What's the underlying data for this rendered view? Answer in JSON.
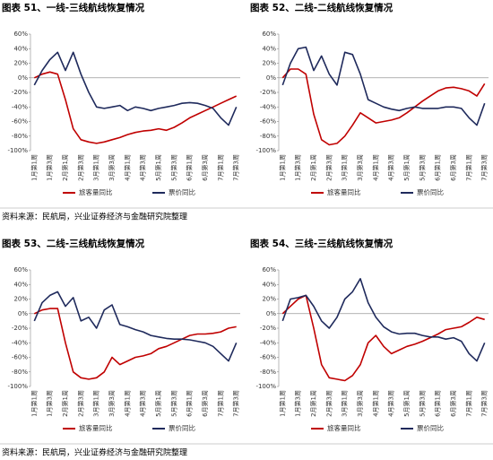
{
  "chart_data": [
    {
      "type": "line",
      "title": "图表 51、一线-三线航线恢复情况",
      "categories": [
        "1月第1周",
        null,
        "1月第3周",
        null,
        "2月第1周",
        null,
        "2月第3周",
        null,
        "3月第1周",
        null,
        "3月第3周",
        null,
        "4月第1周",
        null,
        "4月第3周",
        null,
        "5月第1周",
        null,
        "5月第3周",
        null,
        "6月第1周",
        null,
        "6月第3周",
        null,
        "7月第1周",
        null,
        "7月第3周"
      ],
      "series": [
        {
          "name": "旅客量同比",
          "color": "#c00000",
          "values": [
            0,
            5,
            8,
            5,
            -30,
            -70,
            -85,
            -88,
            -90,
            -88,
            -85,
            -82,
            -78,
            -75,
            -73,
            -72,
            -70,
            -72,
            -68,
            -62,
            -55,
            -50,
            -45,
            -40,
            -35,
            -30,
            -25
          ]
        },
        {
          "name": "票价同比",
          "color": "#1f2a5c",
          "values": [
            -10,
            10,
            25,
            35,
            10,
            35,
            5,
            -20,
            -40,
            -42,
            -40,
            -38,
            -45,
            -40,
            -42,
            -45,
            -42,
            -40,
            -38,
            -35,
            -34,
            -35,
            -38,
            -42,
            -55,
            -65,
            -40
          ]
        }
      ],
      "ylim": [
        -100,
        60
      ],
      "yticks": [
        {
          "value": -100,
          "label": "-100%"
        },
        {
          "value": -80,
          "label": "-80%"
        },
        {
          "value": -60,
          "label": "-60%"
        },
        {
          "value": -40,
          "label": "-40%"
        },
        {
          "value": -20,
          "label": "-20%"
        },
        {
          "value": 0,
          "label": "0%"
        },
        {
          "value": 20,
          "label": "20%"
        },
        {
          "value": 40,
          "label": "40%"
        },
        {
          "value": 60,
          "label": "60%"
        }
      ],
      "grid": false,
      "legend": "bottom"
    },
    {
      "type": "line",
      "title": "图表 52、二线-二线航线恢复情况",
      "categories": [
        "1月第1周",
        null,
        "1月第3周",
        null,
        "2月第1周",
        null,
        "2月第3周",
        null,
        "3月第1周",
        null,
        "3月第3周",
        null,
        "4月第1周",
        null,
        "4月第3周",
        null,
        "5月第1周",
        null,
        "5月第3周",
        null,
        "6月第1周",
        null,
        "6月第3周",
        null,
        "7月第1周",
        null,
        "7月第3周"
      ],
      "series": [
        {
          "name": "旅客量同比",
          "color": "#c00000",
          "values": [
            0,
            12,
            12,
            5,
            -50,
            -85,
            -92,
            -90,
            -80,
            -65,
            -48,
            -55,
            -62,
            -60,
            -58,
            -55,
            -48,
            -40,
            -32,
            -25,
            -18,
            -14,
            -13,
            -15,
            -18,
            -25,
            -8
          ]
        },
        {
          "name": "票价同比",
          "color": "#1f2a5c",
          "values": [
            -10,
            20,
            40,
            42,
            10,
            30,
            5,
            -10,
            35,
            32,
            5,
            -30,
            -35,
            -40,
            -43,
            -45,
            -42,
            -40,
            -42,
            -42,
            -42,
            -40,
            -40,
            -42,
            -55,
            -65,
            -35
          ]
        }
      ],
      "ylim": [
        -100,
        60
      ],
      "yticks": [
        {
          "value": -100,
          "label": "-100%"
        },
        {
          "value": -80,
          "label": "-80%"
        },
        {
          "value": -60,
          "label": "-60%"
        },
        {
          "value": -40,
          "label": "-40%"
        },
        {
          "value": -20,
          "label": "-20%"
        },
        {
          "value": 0,
          "label": "0%"
        },
        {
          "value": 20,
          "label": "20%"
        },
        {
          "value": 40,
          "label": "40%"
        },
        {
          "value": 60,
          "label": "60%"
        }
      ],
      "grid": false,
      "legend": "bottom"
    },
    {
      "type": "line",
      "title": "图表 53、二线-三线航线恢复情况",
      "categories": [
        "1月第1周",
        null,
        "1月第3周",
        null,
        "2月第1周",
        null,
        "2月第3周",
        null,
        "3月第1周",
        null,
        "3月第3周",
        null,
        "4月第1周",
        null,
        "4月第3周",
        null,
        "5月第1周",
        null,
        "5月第3周",
        null,
        "6月第1周",
        null,
        "6月第3周",
        null,
        "7月第1周",
        null,
        "7月第3周"
      ],
      "series": [
        {
          "name": "旅客量同比",
          "color": "#c00000",
          "values": [
            0,
            5,
            7,
            7,
            -40,
            -80,
            -88,
            -90,
            -88,
            -80,
            -60,
            -70,
            -65,
            -60,
            -58,
            -55,
            -48,
            -45,
            -40,
            -35,
            -30,
            -28,
            -28,
            -27,
            -25,
            -20,
            -18
          ]
        },
        {
          "name": "票价同比",
          "color": "#1f2a5c",
          "values": [
            -10,
            15,
            25,
            30,
            10,
            22,
            -10,
            -5,
            -20,
            5,
            12,
            -15,
            -18,
            -22,
            -25,
            -30,
            -32,
            -34,
            -35,
            -35,
            -36,
            -38,
            -40,
            -45,
            -55,
            -65,
            -40
          ]
        }
      ],
      "ylim": [
        -100,
        60
      ],
      "yticks": [
        {
          "value": -100,
          "label": "-100%"
        },
        {
          "value": -80,
          "label": "-80%"
        },
        {
          "value": -60,
          "label": "-60%"
        },
        {
          "value": -40,
          "label": "-40%"
        },
        {
          "value": -20,
          "label": "-20%"
        },
        {
          "value": 0,
          "label": "0%"
        },
        {
          "value": 20,
          "label": "20%"
        },
        {
          "value": 40,
          "label": "40%"
        },
        {
          "value": 60,
          "label": "60%"
        }
      ],
      "grid": false,
      "legend": "bottom"
    },
    {
      "type": "line",
      "title": "图表 54、三线-三线航线恢复情况",
      "categories": [
        "1月第1周",
        null,
        "1月第3周",
        null,
        "2月第1周",
        null,
        "2月第3周",
        null,
        "3月第1周",
        null,
        "3月第3周",
        null,
        "4月第1周",
        null,
        "4月第3周",
        null,
        "5月第1周",
        null,
        "5月第3周",
        null,
        "6月第1周",
        null,
        "6月第3周",
        null,
        "7月第1周",
        null,
        "7月第3周"
      ],
      "series": [
        {
          "name": "旅客量同比",
          "color": "#c00000",
          "values": [
            0,
            10,
            20,
            25,
            -20,
            -70,
            -88,
            -90,
            -92,
            -85,
            -70,
            -40,
            -30,
            -45,
            -55,
            -50,
            -45,
            -42,
            -38,
            -33,
            -28,
            -22,
            -20,
            -18,
            -12,
            -5,
            -8
          ]
        },
        {
          "name": "票价同比",
          "color": "#1f2a5c",
          "values": [
            -10,
            20,
            22,
            25,
            10,
            -10,
            -20,
            -5,
            20,
            30,
            48,
            15,
            -5,
            -18,
            -25,
            -28,
            -27,
            -27,
            -30,
            -32,
            -32,
            -35,
            -33,
            -38,
            -55,
            -65,
            -40
          ]
        }
      ],
      "ylim": [
        -100,
        60
      ],
      "yticks": [
        {
          "value": -100,
          "label": "-100%"
        },
        {
          "value": -80,
          "label": "-80%"
        },
        {
          "value": -60,
          "label": "-60%"
        },
        {
          "value": -40,
          "label": "-40%"
        },
        {
          "value": -20,
          "label": "-20%"
        },
        {
          "value": 0,
          "label": "0%"
        },
        {
          "value": 20,
          "label": "20%"
        },
        {
          "value": 40,
          "label": "40%"
        },
        {
          "value": 60,
          "label": "60%"
        }
      ],
      "grid": false,
      "legend": "bottom"
    }
  ],
  "sources": [
    "资料来源：民航局，兴业证券经济与金融研究院整理",
    "资料来源：民航局，兴业证券经济与金融研究院整理"
  ]
}
